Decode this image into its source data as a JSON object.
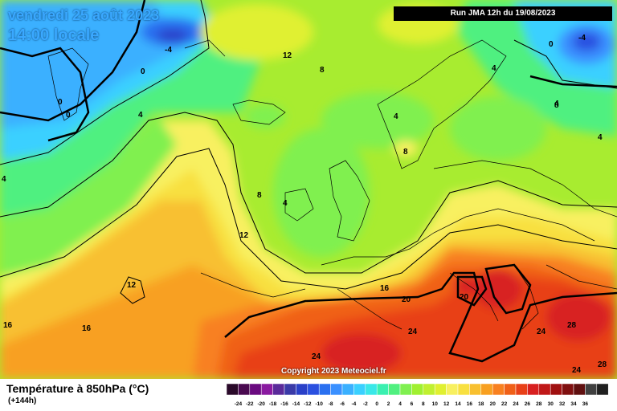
{
  "header": {
    "date_line": "vendredi 25 août 2023",
    "time_line": "14:00 locale",
    "run_info": "Run JMA 12h du 19/08/2023"
  },
  "copyright": "Copyright 2023 Meteociel.fr",
  "footer": {
    "title": "Température à 850hPa (°C)",
    "subtitle": "(+144h)"
  },
  "colors": {
    "scale": [
      "#2a0a2a",
      "#4a0a50",
      "#6a0a80",
      "#8a1aa0",
      "#5a2a9a",
      "#3a3aa8",
      "#2a40c8",
      "#2a50e0",
      "#2a70f0",
      "#3a90ff",
      "#3ab0ff",
      "#3ad0ff",
      "#3ae8e8",
      "#3af0b0",
      "#50f080",
      "#80f050",
      "#a0f030",
      "#c0f030",
      "#e0f030",
      "#f8f060",
      "#f8e040",
      "#f8c030",
      "#f8a020",
      "#f88020",
      "#f06018",
      "#e84018",
      "#d82020",
      "#c01818",
      "#a01010",
      "#801010",
      "#601010",
      "#404040",
      "#202020"
    ]
  },
  "scale_labels": [
    "-24",
    "-22",
    "-20",
    "-18",
    "-16",
    "-14",
    "-12",
    "-10",
    "-8",
    "-6",
    "-4",
    "-2",
    "0",
    "2",
    "4",
    "6",
    "8",
    "10",
    "12",
    "14",
    "16",
    "18",
    "20",
    "22",
    "24",
    "26",
    "28",
    "30",
    "32",
    "34",
    "36"
  ],
  "contour_labels": [
    "-4",
    "0",
    "0",
    "0",
    "4",
    "4",
    "8",
    "12",
    "4",
    "4",
    "8",
    "8",
    "4",
    "0",
    "-4",
    "4",
    "4",
    "8",
    "12",
    "12",
    "16",
    "16",
    "20",
    "20",
    "24",
    "24",
    "24",
    "24",
    "28",
    "28",
    "-4"
  ]
}
